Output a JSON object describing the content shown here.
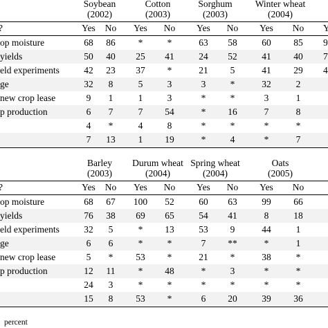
{
  "table1": {
    "crops": [
      {
        "name": "Soybean",
        "year": "(2002)"
      },
      {
        "name": "Cotton",
        "year": "(2003)"
      },
      {
        "name": "Sorghum",
        "year": "(2003)"
      },
      {
        "name": "Winter wheat",
        "year": "(2004)"
      }
    ],
    "subheader": {
      "label": "?",
      "yes": "Yes",
      "no": "No",
      "extra": "Y"
    },
    "rows": [
      {
        "label": "op moisture",
        "v": [
          "68",
          "86",
          "*",
          "*",
          "63",
          "58",
          "60",
          "85"
        ],
        "extra": "9"
      },
      {
        "label": "yields",
        "v": [
          "50",
          "40",
          "25",
          "41",
          "24",
          "52",
          "41",
          "40"
        ],
        "extra": "7"
      },
      {
        "label": "eld experiments",
        "v": [
          "42",
          "23",
          "37",
          "*",
          "21",
          "5",
          "41",
          "29"
        ],
        "extra": "4"
      },
      {
        "label": "ge",
        "v": [
          "32",
          "8",
          "5",
          "3",
          "3",
          "*",
          "32",
          "2"
        ],
        "extra": ""
      },
      {
        "label": "new crop lease",
        "v": [
          "9",
          "1",
          "1",
          "3",
          "*",
          "*",
          "3",
          "1"
        ],
        "extra": ""
      },
      {
        "label": "p production",
        "v": [
          "6",
          "7",
          "7",
          "54",
          "*",
          "16",
          "7",
          "8"
        ],
        "extra": ""
      },
      {
        "label": "",
        "v": [
          "4",
          "*",
          "4",
          "8",
          "*",
          "*",
          "*",
          "*"
        ],
        "extra": ""
      },
      {
        "label": "",
        "v": [
          "7",
          "13",
          "1",
          "19",
          "*",
          "4",
          "*",
          "7"
        ],
        "extra": ""
      }
    ]
  },
  "table2": {
    "crops": [
      {
        "name": "Barley",
        "year": "(2003)"
      },
      {
        "name": "Durum wheat",
        "year": "(2004)"
      },
      {
        "name": "Spring wheat",
        "year": "(2004)"
      },
      {
        "name": "Oats",
        "year": "(2005)"
      }
    ],
    "subheader": {
      "label": "?",
      "yes": "Yes",
      "no": "No"
    },
    "rows": [
      {
        "label": "op moisture",
        "v": [
          "68",
          "67",
          "100",
          "52",
          "60",
          "63",
          "99",
          "66"
        ]
      },
      {
        "label": "yields",
        "v": [
          "76",
          "38",
          "69",
          "65",
          "54",
          "41",
          "8",
          "18"
        ]
      },
      {
        "label": "eld experiments",
        "v": [
          "32",
          "5",
          "*",
          "13",
          "53",
          "9",
          "44",
          "1"
        ]
      },
      {
        "label": "ge",
        "v": [
          "6",
          "6",
          "*",
          "*",
          "7",
          "**",
          "*",
          "1"
        ]
      },
      {
        "label": "new crop lease",
        "v": [
          "5",
          "*",
          "53",
          "*",
          "21",
          "*",
          "38",
          "*"
        ]
      },
      {
        "label": "p production",
        "v": [
          "12",
          "11",
          "*",
          "48",
          "*",
          "3",
          "*",
          "*"
        ]
      },
      {
        "label": "",
        "v": [
          "24",
          "3",
          "*",
          "*",
          "*",
          "*",
          "*",
          "*"
        ]
      },
      {
        "label": "",
        "v": [
          "15",
          "8",
          "53",
          "*",
          "6",
          "20",
          "39",
          "36"
        ]
      }
    ]
  },
  "footnote": "percent"
}
